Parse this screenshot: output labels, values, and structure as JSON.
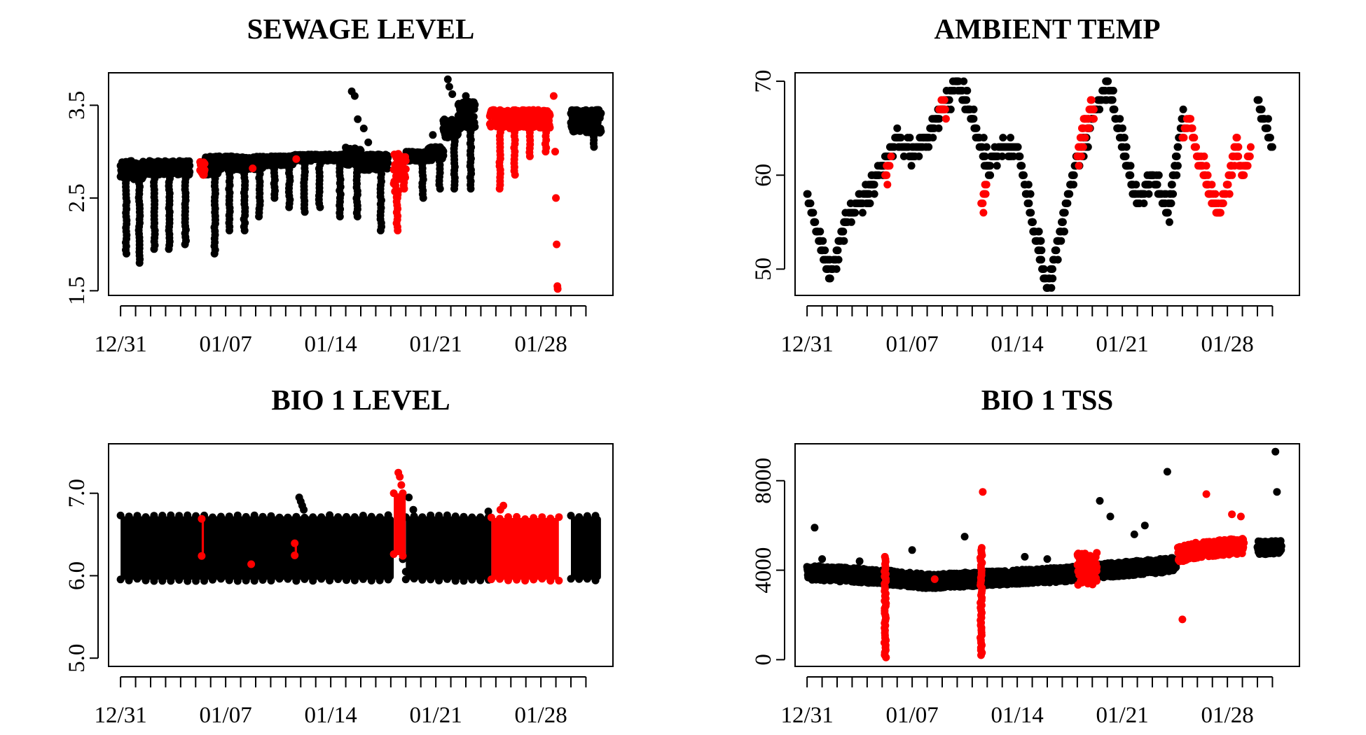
{
  "colors": {
    "normal": "#000000",
    "flagged": "#ff0000"
  },
  "x_axis": {
    "tick_labels": [
      "12/31",
      "01/07",
      "01/14",
      "01/21",
      "01/28"
    ],
    "label_day_index": [
      0,
      7,
      14,
      21,
      28
    ],
    "minor_tick_days": 32
  },
  "chart_data": [
    {
      "type": "scatter",
      "title": "SEWAGE LEVEL",
      "xlabel": "",
      "ylabel": "",
      "ylim": [
        1.45,
        3.85
      ],
      "yticks": [
        1.5,
        2.5,
        3.5
      ],
      "ytick_labels": [
        "1.5",
        "2.5",
        "3.5"
      ],
      "series": [
        {
          "color": "black",
          "segments": [
            [
              0.0,
              0.5,
              2.7,
              2.9,
              1.9
            ],
            [
              0.5,
              1.5,
              2.7,
              2.9,
              1.8
            ],
            [
              1.5,
              2.5,
              2.75,
              2.9,
              1.95
            ],
            [
              2.5,
              3.5,
              2.75,
              2.9,
              1.95
            ],
            [
              3.5,
              4.6,
              2.75,
              2.9,
              2.0
            ],
            [
              5.6,
              6.5,
              2.75,
              2.95,
              1.9
            ],
            [
              6.5,
              7.5,
              2.8,
              2.95,
              2.15
            ],
            [
              7.5,
              8.5,
              2.8,
              2.95,
              2.15
            ],
            [
              8.5,
              9.5,
              2.8,
              2.95,
              2.3
            ],
            [
              9.5,
              10.5,
              2.85,
              2.95,
              2.5
            ],
            [
              10.5,
              11.5,
              2.85,
              2.95,
              2.4
            ],
            [
              11.5,
              12.5,
              2.9,
              2.97,
              2.35
            ],
            [
              12.5,
              13.5,
              2.9,
              2.97,
              2.4
            ],
            [
              13.5,
              15.0,
              2.9,
              2.97,
              2.3
            ],
            [
              15.0,
              16.0,
              2.85,
              3.05,
              2.3
            ],
            [
              16.0,
              17.8,
              2.8,
              2.97,
              2.15
            ],
            [
              19.0,
              20.5,
              2.9,
              3.0,
              2.5
            ],
            [
              20.5,
              21.5,
              2.9,
              3.05,
              2.6
            ],
            [
              21.5,
              22.5,
              3.15,
              3.35,
              2.6
            ],
            [
              22.5,
              23.6,
              3.25,
              3.55,
              2.6
            ],
            [
              30.0,
              32.0,
              3.2,
              3.45,
              3.05
            ]
          ],
          "points": [
            [
              15.4,
              3.65
            ],
            [
              15.6,
              3.6
            ],
            [
              15.8,
              3.35
            ],
            [
              16.2,
              3.25
            ],
            [
              16.5,
              3.1
            ],
            [
              20.8,
              3.18
            ],
            [
              21.8,
              3.78
            ],
            [
              21.9,
              3.7
            ],
            [
              22.1,
              3.62
            ],
            [
              23.0,
              3.6
            ]
          ]
        },
        {
          "color": "red",
          "segments": [
            [
              5.3,
              5.6,
              2.75,
              2.9,
              2.75
            ],
            [
              18.2,
              18.5,
              2.5,
              3.0,
              2.15
            ],
            [
              18.5,
              19.0,
              2.7,
              2.95,
              2.6
            ],
            [
              24.6,
              25.5,
              3.25,
              3.45,
              2.6
            ],
            [
              25.5,
              26.5,
              3.25,
              3.45,
              2.75
            ],
            [
              26.5,
              27.5,
              3.25,
              3.45,
              2.95
            ],
            [
              27.5,
              28.6,
              3.25,
              3.45,
              3.0
            ]
          ],
          "points": [
            [
              8.8,
              2.82
            ],
            [
              11.7,
              2.92
            ],
            [
              28.85,
              3.6
            ],
            [
              28.95,
              3.0
            ],
            [
              29.0,
              2.5
            ],
            [
              29.05,
              2.0
            ],
            [
              29.1,
              1.55
            ],
            [
              29.12,
              1.52
            ]
          ]
        }
      ]
    },
    {
      "type": "scatter",
      "title": "AMBIENT TEMP",
      "xlabel": "",
      "ylabel": "",
      "ylim": [
        47.2,
        70.9
      ],
      "yticks": [
        50,
        60,
        70
      ],
      "ytick_labels": [
        "50",
        "60",
        "70"
      ],
      "series": [
        {
          "color": "black",
          "lines": [
            [
              [
                0,
                58
              ],
              [
                1,
                52
              ],
              [
                1.5,
                49
              ],
              [
                2.5,
                55
              ],
              [
                4,
                58
              ],
              [
                5,
                61
              ],
              [
                6,
                64
              ],
              [
                7,
                62
              ],
              [
                8,
                64
              ],
              [
                9,
                67
              ],
              [
                10,
                70
              ],
              [
                11,
                66
              ],
              [
                12,
                61
              ],
              [
                13,
                63
              ],
              [
                14,
                63
              ],
              [
                15,
                55
              ],
              [
                16,
                48
              ],
              [
                17,
                55
              ],
              [
                18,
                62
              ],
              [
                19,
                66
              ],
              [
                20,
                70
              ],
              [
                21,
                63
              ],
              [
                22,
                57
              ],
              [
                23,
                60
              ],
              [
                24,
                56
              ],
              [
                25,
                66
              ]
            ],
            [
              [
                30,
                68
              ],
              [
                31,
                63
              ]
            ]
          ]
        },
        {
          "color": "red",
          "lines": [
            [
              [
                5.2,
                60
              ],
              [
                5.5,
                61
              ]
            ],
            [
              [
                8.8,
                67
              ],
              [
                9.2,
                67
              ]
            ],
            [
              [
                11.6,
                57
              ],
              [
                11.9,
                58
              ]
            ],
            [
              [
                18.0,
                62
              ],
              [
                18.5,
                66
              ],
              [
                19.1,
                67
              ]
            ],
            [
              [
                25.0,
                64
              ],
              [
                25.5,
                66
              ],
              [
                26.0,
                62
              ],
              [
                26.5,
                60
              ],
              [
                27.0,
                57
              ],
              [
                27.5,
                56
              ],
              [
                28.0,
                59
              ],
              [
                28.5,
                63
              ],
              [
                29.0,
                60
              ],
              [
                29.5,
                62
              ]
            ]
          ]
        }
      ]
    },
    {
      "type": "scatter",
      "title": "BIO 1 LEVEL",
      "xlabel": "",
      "ylabel": "",
      "ylim": [
        4.9,
        7.6
      ],
      "yticks": [
        5.0,
        6.0,
        7.0
      ],
      "ytick_labels": [
        "5.0",
        "6.0",
        "7.0"
      ],
      "series": [
        {
          "color": "black",
          "bands": [
            [
              0.0,
              18.2,
              5.95,
              6.72
            ],
            [
              19.0,
              24.7,
              5.95,
              6.72
            ],
            [
              30.0,
              32.0,
              5.95,
              6.72
            ]
          ],
          "points": [
            [
              11.9,
              6.95
            ],
            [
              12.0,
              6.9
            ],
            [
              12.1,
              6.85
            ],
            [
              12.2,
              6.8
            ],
            [
              24.5,
              6.78
            ],
            [
              19.2,
              6.95
            ],
            [
              19.5,
              6.8
            ],
            [
              19.8,
              6.65
            ],
            [
              18.8,
              6.2
            ],
            [
              19.0,
              6.05
            ]
          ]
        },
        {
          "color": "red",
          "bands": [
            [
              24.7,
              29.2,
              5.95,
              6.7
            ],
            [
              18.2,
              19.0,
              6.25,
              7.0
            ],
            [
              5.4,
              5.55,
              6.25,
              6.68
            ],
            [
              11.6,
              11.75,
              6.25,
              6.38
            ]
          ],
          "points": [
            [
              18.5,
              7.25
            ],
            [
              18.6,
              7.2
            ],
            [
              18.7,
              7.1
            ],
            [
              8.7,
              6.14
            ],
            [
              25.5,
              6.85
            ],
            [
              25.3,
              6.8
            ]
          ]
        }
      ]
    },
    {
      "type": "scatter",
      "title": "BIO 1 TSS",
      "xlabel": "",
      "ylabel": "",
      "ylim": [
        -300,
        9650
      ],
      "yticks": [
        0,
        4000,
        8000
      ],
      "ytick_labels": [
        "0",
        "4000",
        "8000"
      ],
      "series": [
        {
          "color": "black",
          "trend": [
            [
              0,
              3900
            ],
            [
              5,
              3700
            ],
            [
              8,
              3500
            ],
            [
              11,
              3600
            ],
            [
              14,
              3700
            ],
            [
              17,
              3800
            ],
            [
              20,
              4000
            ],
            [
              24.5,
              4250
            ]
          ],
          "spread": 320,
          "trend_end": 24.6,
          "trend2": [
            [
              30,
              5000
            ],
            [
              31.5,
              5050
            ]
          ],
          "spread2": 300,
          "points": [
            [
              0.5,
              5900
            ],
            [
              10.5,
              5500
            ],
            [
              19.5,
              7100
            ],
            [
              20.2,
              6400
            ],
            [
              22.5,
              6000
            ],
            [
              24.0,
              8400
            ],
            [
              31.2,
              9300
            ],
            [
              31.3,
              7500
            ],
            [
              1.0,
              4500
            ],
            [
              3.5,
              4400
            ],
            [
              7.0,
              4900
            ],
            [
              14.5,
              4600
            ],
            [
              21.8,
              5600
            ],
            [
              16.0,
              4500
            ]
          ]
        },
        {
          "color": "red",
          "trend": [
            [
              24.7,
              4700
            ],
            [
              26,
              4900
            ],
            [
              29,
              5100
            ]
          ],
          "spread": 350,
          "trend_end": 29.2,
          "columns": [
            [
              5.2,
              100,
              4600
            ],
            [
              11.6,
              200,
              5000
            ]
          ],
          "points": [
            [
              11.7,
              7500
            ],
            [
              26.6,
              7400
            ],
            [
              28.3,
              6500
            ],
            [
              28.9,
              6400
            ],
            [
              25.0,
              1800
            ],
            [
              8.5,
              3600
            ],
            [
              18.5,
              3900
            ],
            [
              18.8,
              4500
            ]
          ],
          "cluster": [
            18.0,
            19.3,
            3300,
            4800
          ]
        }
      ]
    }
  ]
}
